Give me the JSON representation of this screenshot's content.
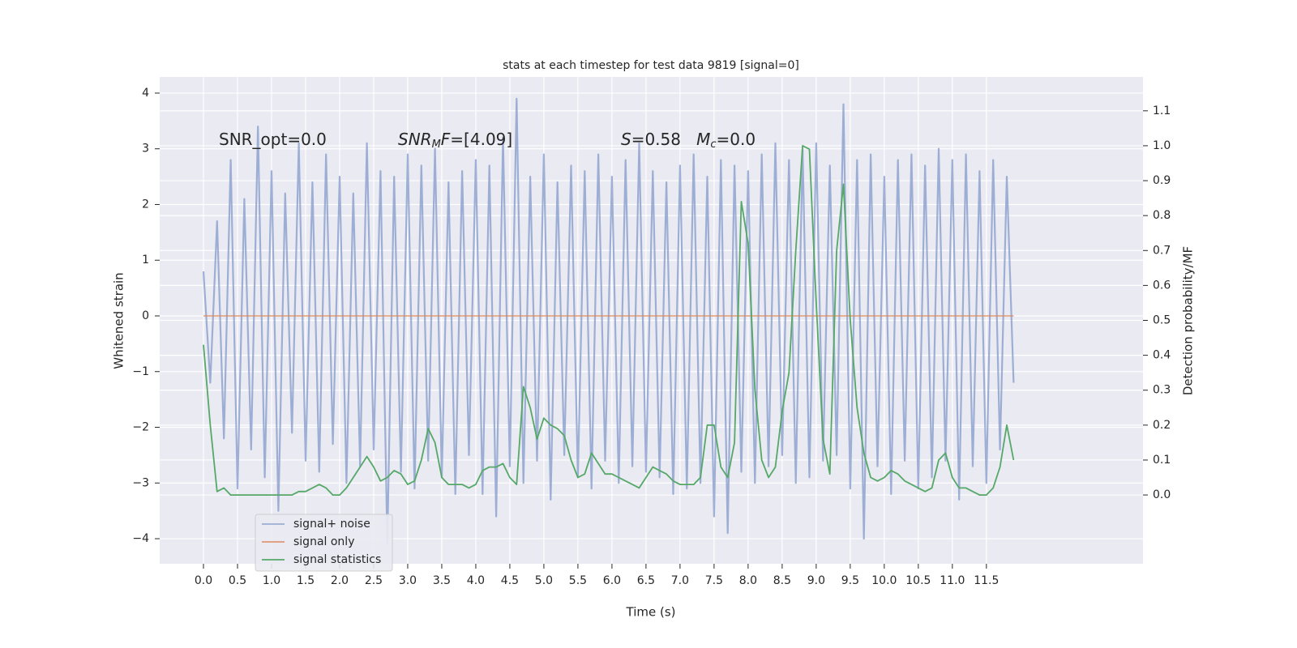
{
  "chart_data": {
    "type": "line",
    "title": "stats at each timestep for test data 9819 [signal=0]",
    "xlabel": "Time (s)",
    "ylabel": "Whitened strain",
    "y2label": "Detection probability/MF",
    "annotations": [
      [
        {
          "text": "SNR_opt=0.0"
        }
      ],
      [
        {
          "text": "SNR",
          "style": "italic"
        },
        {
          "text": "M",
          "style": "italic-sub"
        },
        {
          "text": "F",
          "style": "italic"
        },
        {
          "text": "=[4.09]"
        }
      ],
      [
        {
          "text": "S",
          "style": "italic"
        },
        {
          "text": "=0.58   "
        },
        {
          "text": "M",
          "style": "italic"
        },
        {
          "text": "c",
          "style": "italic-sub"
        },
        {
          "text": "=0.0"
        }
      ]
    ],
    "x": [
      0.0,
      0.1,
      0.2,
      0.3,
      0.4,
      0.5,
      0.6,
      0.7,
      0.8,
      0.9,
      1.0,
      1.1,
      1.2,
      1.3,
      1.4,
      1.5,
      1.6,
      1.7,
      1.8,
      1.9,
      2.0,
      2.1,
      2.2,
      2.3,
      2.4,
      2.5,
      2.6,
      2.7,
      2.8,
      2.9,
      3.0,
      3.1,
      3.2,
      3.3,
      3.4,
      3.5,
      3.6,
      3.7,
      3.8,
      3.9,
      4.0,
      4.1,
      4.2,
      4.3,
      4.4,
      4.5,
      4.6,
      4.7,
      4.8,
      4.9,
      5.0,
      5.1,
      5.2,
      5.3,
      5.4,
      5.5,
      5.6,
      5.7,
      5.8,
      5.9,
      6.0,
      6.1,
      6.2,
      6.3,
      6.4,
      6.5,
      6.6,
      6.7,
      6.8,
      6.9,
      7.0,
      7.1,
      7.2,
      7.3,
      7.4,
      7.5,
      7.6,
      7.7,
      7.8,
      7.9,
      8.0,
      8.1,
      8.2,
      8.3,
      8.4,
      8.5,
      8.6,
      8.7,
      8.8,
      8.9,
      9.0,
      9.1,
      9.2,
      9.3,
      9.4,
      9.5,
      9.6,
      9.7,
      9.8,
      9.9,
      10.0,
      10.1,
      10.2,
      10.3,
      10.4,
      10.5,
      10.6,
      10.7,
      10.8,
      10.9,
      11.0,
      11.1,
      11.2,
      11.3,
      11.4,
      11.5,
      11.6,
      11.7,
      11.8,
      11.9
    ],
    "series": [
      {
        "name": "signal+ noise",
        "color": "#8fa3cf",
        "values": [
          0.8,
          -1.2,
          1.7,
          -2.2,
          2.8,
          -3.1,
          2.1,
          -2.4,
          3.4,
          -2.9,
          2.6,
          -3.5,
          2.2,
          -2.1,
          3.1,
          -2.6,
          2.4,
          -2.8,
          2.9,
          -2.3,
          2.5,
          -3.0,
          2.2,
          -2.7,
          3.1,
          -2.4,
          2.6,
          -4.1,
          2.5,
          -2.8,
          2.9,
          -3.1,
          2.7,
          -2.6,
          3.0,
          -2.9,
          2.4,
          -3.2,
          2.6,
          -2.5,
          2.8,
          -3.2,
          2.7,
          -3.6,
          3.2,
          -2.7,
          3.9,
          -3.0,
          2.5,
          -2.6,
          2.9,
          -3.3,
          2.4,
          -2.5,
          2.7,
          -2.9,
          2.6,
          -3.1,
          2.9,
          -2.6,
          2.5,
          -3.0,
          2.8,
          -2.7,
          3.1,
          -2.8,
          2.6,
          -2.9,
          2.4,
          -3.2,
          2.7,
          -3.1,
          2.9,
          -3.0,
          2.5,
          -3.6,
          2.8,
          -3.9,
          2.7,
          -2.8,
          2.6,
          -3.0,
          2.9,
          -2.7,
          3.1,
          -2.5,
          2.8,
          -3.0,
          3.0,
          -2.9,
          3.1,
          -2.6,
          2.7,
          -2.5,
          3.8,
          -3.1,
          2.8,
          -4.0,
          2.9,
          -2.7,
          2.5,
          -3.2,
          2.8,
          -2.6,
          2.9,
          -3.1,
          2.7,
          -2.9,
          3.0,
          -2.6,
          2.8,
          -3.3,
          2.9,
          -2.7,
          2.6,
          -3.0,
          2.8,
          -2.4,
          2.5,
          -1.2
        ]
      },
      {
        "name": "signal only",
        "color": "#dd8452",
        "values": [
          0,
          0,
          0,
          0,
          0,
          0,
          0,
          0,
          0,
          0,
          0,
          0,
          0,
          0,
          0,
          0,
          0,
          0,
          0,
          0,
          0,
          0,
          0,
          0,
          0,
          0,
          0,
          0,
          0,
          0,
          0,
          0,
          0,
          0,
          0,
          0,
          0,
          0,
          0,
          0,
          0,
          0,
          0,
          0,
          0,
          0,
          0,
          0,
          0,
          0,
          0,
          0,
          0,
          0,
          0,
          0,
          0,
          0,
          0,
          0,
          0,
          0,
          0,
          0,
          0,
          0,
          0,
          0,
          0,
          0,
          0,
          0,
          0,
          0,
          0,
          0,
          0,
          0,
          0,
          0,
          0,
          0,
          0,
          0,
          0,
          0,
          0,
          0,
          0,
          0,
          0,
          0,
          0,
          0,
          0,
          0,
          0,
          0,
          0,
          0,
          0,
          0,
          0,
          0,
          0,
          0,
          0,
          0,
          0,
          0,
          0,
          0,
          0,
          0,
          0,
          0,
          0,
          0,
          0,
          0
        ]
      },
      {
        "name": "signal statistics",
        "color": "#55a868",
        "axis": "y2",
        "values": [
          0.43,
          0.2,
          0.01,
          0.02,
          0.0,
          0.0,
          0.0,
          0.0,
          0.0,
          0.0,
          0.0,
          0.0,
          0.0,
          0.0,
          0.01,
          0.01,
          0.02,
          0.03,
          0.02,
          0.0,
          0.0,
          0.02,
          0.05,
          0.08,
          0.11,
          0.08,
          0.04,
          0.05,
          0.07,
          0.06,
          0.03,
          0.04,
          0.1,
          0.19,
          0.15,
          0.05,
          0.03,
          0.03,
          0.03,
          0.02,
          0.03,
          0.07,
          0.08,
          0.08,
          0.09,
          0.05,
          0.03,
          0.31,
          0.25,
          0.16,
          0.22,
          0.2,
          0.19,
          0.17,
          0.1,
          0.05,
          0.06,
          0.12,
          0.09,
          0.06,
          0.06,
          0.05,
          0.04,
          0.03,
          0.02,
          0.05,
          0.08,
          0.07,
          0.06,
          0.04,
          0.03,
          0.03,
          0.03,
          0.05,
          0.2,
          0.2,
          0.08,
          0.05,
          0.15,
          0.84,
          0.72,
          0.3,
          0.1,
          0.05,
          0.08,
          0.24,
          0.35,
          0.7,
          1.0,
          0.99,
          0.55,
          0.16,
          0.06,
          0.7,
          0.89,
          0.5,
          0.25,
          0.12,
          0.05,
          0.04,
          0.05,
          0.07,
          0.06,
          0.04,
          0.03,
          0.02,
          0.01,
          0.02,
          0.1,
          0.12,
          0.05,
          0.02,
          0.02,
          0.01,
          0.0,
          0.0,
          0.02,
          0.08,
          0.2,
          0.1
        ]
      }
    ],
    "xlim": [
      -0.643,
      13.8
    ],
    "xticks": [
      {
        "value": 0,
        "label": "0.0"
      },
      {
        "value": 0.5,
        "label": "0.5"
      },
      {
        "value": 1,
        "label": "1.0"
      },
      {
        "value": 1.5,
        "label": "1.5"
      },
      {
        "value": 2,
        "label": "2.0"
      },
      {
        "value": 2.5,
        "label": "2.5"
      },
      {
        "value": 3,
        "label": "3.0"
      },
      {
        "value": 3.5,
        "label": "3.5"
      },
      {
        "value": 4,
        "label": "4.0"
      },
      {
        "value": 4.5,
        "label": "4.5"
      },
      {
        "value": 5,
        "label": "5.0"
      },
      {
        "value": 5.5,
        "label": "5.5"
      },
      {
        "value": 6,
        "label": "6.0"
      },
      {
        "value": 6.5,
        "label": "6.5"
      },
      {
        "value": 7,
        "label": "7.0"
      },
      {
        "value": 7.5,
        "label": "7.5"
      },
      {
        "value": 8,
        "label": "8.0"
      },
      {
        "value": 8.5,
        "label": "8.5"
      },
      {
        "value": 9,
        "label": "9.0"
      },
      {
        "value": 9.5,
        "label": "9.5"
      },
      {
        "value": 10,
        "label": "10.0"
      },
      {
        "value": 10.5,
        "label": "10.5"
      },
      {
        "value": 11,
        "label": "11.0"
      },
      {
        "value": 11.5,
        "label": "11.5"
      }
    ],
    "ylim": [
      -4.45,
      4.29
    ],
    "yticks": [
      {
        "value": -4,
        "label": "−4"
      },
      {
        "value": -3,
        "label": "−3"
      },
      {
        "value": -2,
        "label": "−2"
      },
      {
        "value": -1,
        "label": "−1"
      },
      0,
      1,
      2,
      3,
      4
    ],
    "y2lim": [
      -0.197,
      1.197
    ],
    "y2ticks": [
      {
        "value": 0,
        "label": "0.0"
      },
      {
        "value": 0.1,
        "label": "0.1"
      },
      {
        "value": 0.2,
        "label": "0.2"
      },
      {
        "value": 0.3,
        "label": "0.3"
      },
      {
        "value": 0.4,
        "label": "0.4"
      },
      {
        "value": 0.5,
        "label": "0.5"
      },
      {
        "value": 0.6,
        "label": "0.6"
      },
      {
        "value": 0.7,
        "label": "0.7"
      },
      {
        "value": 0.8,
        "label": "0.8"
      },
      {
        "value": 0.9,
        "label": "0.9"
      },
      {
        "value": 1,
        "label": "1.0"
      },
      {
        "value": 1.1,
        "label": "1.1"
      }
    ],
    "grid": true,
    "legend": "lower left",
    "background": "#eaeaf2"
  }
}
